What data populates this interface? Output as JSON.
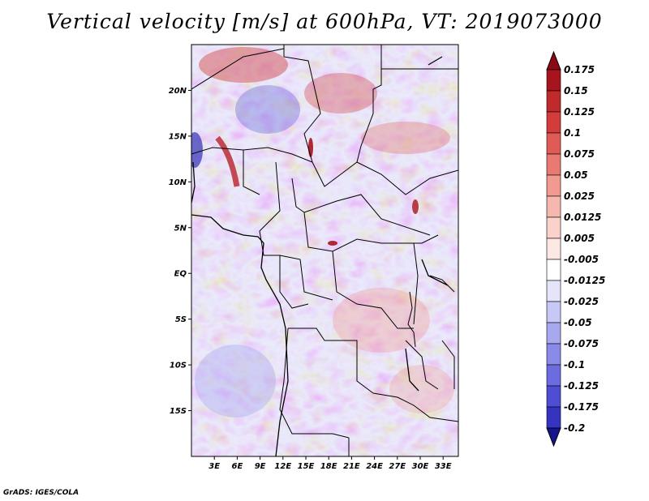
{
  "title": "Vertical velocity [m/s] at 600hPa, VT: 2019073000",
  "footer": "GrADS: IGES/COLA",
  "map": {
    "lon_range": [
      0,
      35
    ],
    "lat_range": [
      -20,
      25
    ],
    "lon_ticks": [
      {
        "value": 3,
        "label": "3E"
      },
      {
        "value": 6,
        "label": "6E"
      },
      {
        "value": 9,
        "label": "9E"
      },
      {
        "value": 12,
        "label": "12E"
      },
      {
        "value": 15,
        "label": "15E"
      },
      {
        "value": 18,
        "label": "18E"
      },
      {
        "value": 21,
        "label": "21E"
      },
      {
        "value": 24,
        "label": "24E"
      },
      {
        "value": 27,
        "label": "27E"
      },
      {
        "value": 30,
        "label": "30E"
      },
      {
        "value": 33,
        "label": "33E"
      }
    ],
    "lat_ticks": [
      {
        "value": 20,
        "label": "20N"
      },
      {
        "value": 15,
        "label": "15N"
      },
      {
        "value": 10,
        "label": "10N"
      },
      {
        "value": 5,
        "label": "5N"
      },
      {
        "value": 0,
        "label": "EQ"
      },
      {
        "value": -5,
        "label": "5S"
      },
      {
        "value": -10,
        "label": "10S"
      },
      {
        "value": -15,
        "label": "15S"
      }
    ]
  },
  "colorbar": {
    "levels": [
      {
        "label": "0.175",
        "color": "#a8141e"
      },
      {
        "label": "0.15",
        "color": "#c02a2a"
      },
      {
        "label": "0.125",
        "color": "#d43c3c"
      },
      {
        "label": "0.1",
        "color": "#e05a56"
      },
      {
        "label": "0.075",
        "color": "#e87a72"
      },
      {
        "label": "0.05",
        "color": "#f09a90"
      },
      {
        "label": "0.025",
        "color": "#f6b8ae"
      },
      {
        "label": "0.0125",
        "color": "#fad2ca"
      },
      {
        "label": "0.005",
        "color": "#fde8e4"
      },
      {
        "label": "-0.005",
        "color": "#ffffff"
      },
      {
        "label": "-0.0125",
        "color": "#e4e4fb"
      },
      {
        "label": "-0.025",
        "color": "#c8c8f6"
      },
      {
        "label": "-0.05",
        "color": "#a8a8f0"
      },
      {
        "label": "-0.075",
        "color": "#8a8ae8"
      },
      {
        "label": "-0.1",
        "color": "#6c6ce0"
      },
      {
        "label": "-0.125",
        "color": "#4e4ed4"
      },
      {
        "label": "-0.175",
        "color": "#3434c0"
      },
      {
        "label": "-0.2",
        "color": "#1e1ea0"
      }
    ],
    "top_color": "#8c0a14",
    "bottom_color": "#14148c"
  }
}
